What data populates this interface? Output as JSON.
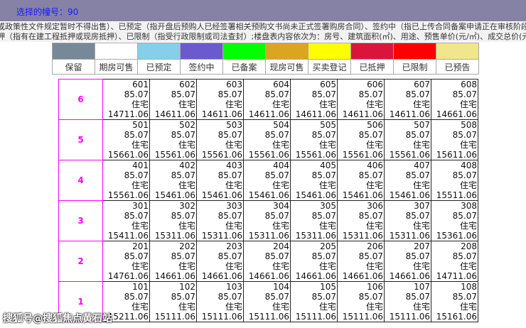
{
  "header": {
    "title": "选择的幢号：90"
  },
  "notes": [
    "或政策性文件规定暂时不得出售）、已预定（指开盘后预购人已经签署相关预购文书尚未正式签署购房合同）、签约中（指已上传合同备案申请正在审核阶段",
    "押（指有在建工程抵押或现房抵押）、已限制（指受行政限制或司法查封）;楼盘表内容依次为：房号、建筑面积(㎡)、用途、预售单价(元/㎡)、成交总价(元"
  ],
  "legend": [
    {
      "label": "保留",
      "color": "#778899"
    },
    {
      "label": "期房可售",
      "color": "#ffffff"
    },
    {
      "label": "已预定",
      "color": "#87ceeb"
    },
    {
      "label": "签约中",
      "color": "#6a5acd"
    },
    {
      "label": "已备案",
      "color": "#00ff00"
    },
    {
      "label": "现房可售",
      "color": "#daa520"
    },
    {
      "label": "买卖登记",
      "color": "#ffff00"
    },
    {
      "label": "已抵押",
      "color": "#dc143c"
    },
    {
      "label": "已限制",
      "color": "#ff0000"
    },
    {
      "label": "已预告",
      "color": "#f0e68c"
    }
  ],
  "floors": [
    {
      "floor": "6",
      "units": [
        [
          "601",
          "85.07",
          "住宅",
          "14711.06"
        ],
        [
          "602",
          "85.07",
          "住宅",
          "14611.06"
        ],
        [
          "603",
          "85.07",
          "住宅",
          "14611.06"
        ],
        [
          "604",
          "85.07",
          "住宅",
          "14611.06"
        ],
        [
          "605",
          "85.07",
          "住宅",
          "14611.06"
        ],
        [
          "606",
          "85.07",
          "住宅",
          "14611.06"
        ],
        [
          "607",
          "85.07",
          "住宅",
          "14611.06"
        ],
        [
          "608",
          "85.07",
          "住宅",
          "14661.06"
        ]
      ]
    },
    {
      "floor": "5",
      "units": [
        [
          "501",
          "85.07",
          "住宅",
          "15661.06"
        ],
        [
          "502",
          "85.07",
          "住宅",
          "15561.06"
        ],
        [
          "503",
          "85.07",
          "住宅",
          "15561.06"
        ],
        [
          "504",
          "85.07",
          "住宅",
          "15561.06"
        ],
        [
          "505",
          "85.07",
          "住宅",
          "15561.06"
        ],
        [
          "506",
          "85.07",
          "住宅",
          "15561.06"
        ],
        [
          "507",
          "85.07",
          "住宅",
          "15561.06"
        ],
        [
          "508",
          "85.07",
          "住宅",
          "15611.06"
        ]
      ]
    },
    {
      "floor": "4",
      "units": [
        [
          "401",
          "85.07",
          "住宅",
          "15561.06"
        ],
        [
          "402",
          "85.07",
          "住宅",
          "15461.06"
        ],
        [
          "403",
          "85.07",
          "住宅",
          "15461.06"
        ],
        [
          "404",
          "85.07",
          "住宅",
          "15461.06"
        ],
        [
          "405",
          "85.07",
          "住宅",
          "15461.06"
        ],
        [
          "406",
          "85.07",
          "住宅",
          "15461.06"
        ],
        [
          "407",
          "85.07",
          "住宅",
          "15461.06"
        ],
        [
          "408",
          "85.07",
          "住宅",
          "15511.06"
        ]
      ]
    },
    {
      "floor": "3",
      "units": [
        [
          "301",
          "85.07",
          "住宅",
          "15411.06"
        ],
        [
          "302",
          "85.07",
          "住宅",
          "15311.06"
        ],
        [
          "303",
          "85.07",
          "住宅",
          "15311.06"
        ],
        [
          "304",
          "85.07",
          "住宅",
          "15311.06"
        ],
        [
          "305",
          "85.07",
          "住宅",
          "15311.06"
        ],
        [
          "306",
          "85.07",
          "住宅",
          "15311.06"
        ],
        [
          "307",
          "85.07",
          "住宅",
          "15311.06"
        ],
        [
          "308",
          "85.07",
          "住宅",
          "15361.06"
        ]
      ]
    },
    {
      "floor": "2",
      "units": [
        [
          "201",
          "85.07",
          "住宅",
          "14761.06"
        ],
        [
          "202",
          "85.07",
          "住宅",
          "14661.06"
        ],
        [
          "203",
          "85.07",
          "住宅",
          "14661.06"
        ],
        [
          "204",
          "85.07",
          "住宅",
          "14661.06"
        ],
        [
          "205",
          "85.07",
          "住宅",
          "14661.06"
        ],
        [
          "206",
          "85.07",
          "住宅",
          "14661.06"
        ],
        [
          "207",
          "85.07",
          "住宅",
          "14661.06"
        ],
        [
          "208",
          "85.07",
          "住宅",
          "14711.06"
        ]
      ]
    },
    {
      "floor": "1",
      "units": [
        [
          "101",
          "85.07",
          "住宅",
          "15211.06"
        ],
        [
          "102",
          "85.07",
          "住宅",
          "15111.06"
        ],
        [
          "103",
          "85.07",
          "住宅",
          "15111.06"
        ],
        [
          "104",
          "85.07",
          "住宅",
          "15111.06"
        ],
        [
          "105",
          "85.07",
          "住宅",
          "15111.06"
        ],
        [
          "106",
          "85.07",
          "住宅",
          "15111.06"
        ],
        [
          "107",
          "85.07",
          "住宅",
          "15111.06"
        ],
        [
          "108",
          "85.07",
          "住宅",
          "15161.06"
        ]
      ]
    }
  ],
  "watermark": "搜狐号@搜狐焦点黄石站"
}
